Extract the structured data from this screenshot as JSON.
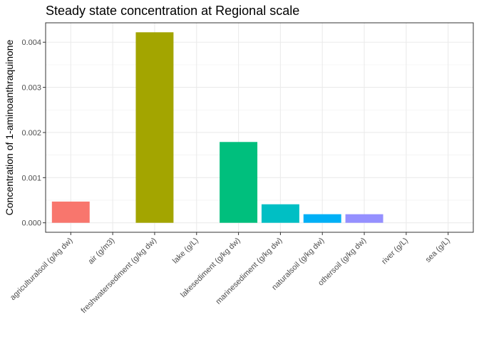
{
  "chart_data": {
    "type": "bar",
    "title": "Steady state concentration at Regional scale",
    "xlabel": "",
    "ylabel": "Concentration of 1-aminoanthraquinone",
    "categories": [
      "agriculturalsoil (g/kg dw)",
      "air (g/m3)",
      "freshwatersediment (g/kg dw)",
      "lake (g/L)",
      "lakesediment (g/kg dw)",
      "marinesediment (g/kg dw)",
      "naturalsoil (g/kg dw)",
      "othersoil (g/kg dw)",
      "river (g/L)",
      "sea (g/L)"
    ],
    "values": [
      0.00047,
      0.0,
      0.00422,
      0.0,
      0.00179,
      0.00041,
      0.00019,
      0.00019,
      0.0,
      0.0
    ],
    "colors": [
      "#F8766D",
      "#D89000",
      "#A3A500",
      "#39B600",
      "#00BF7D",
      "#00BFC4",
      "#00B0F6",
      "#9590FF",
      "#E76BF3",
      "#FF62BC"
    ],
    "yticks": [
      0.0,
      0.001,
      0.002,
      0.003,
      0.004
    ],
    "ytick_labels": [
      "0.000",
      "0.001",
      "0.002",
      "0.003",
      "0.004"
    ],
    "ylim": [
      -0.00021,
      0.00443
    ],
    "grid": true,
    "legend": "none"
  }
}
